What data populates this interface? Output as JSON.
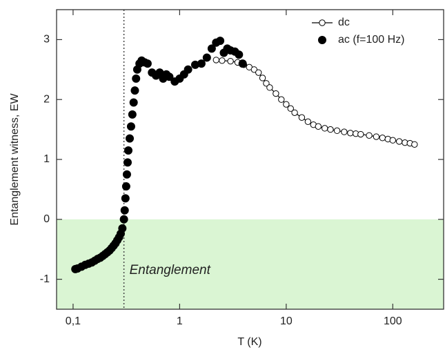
{
  "chart_data": {
    "type": "scatter",
    "x_label": "T (K)",
    "y_label": "Entanglement witness, EW",
    "xlim": [
      0.07,
      300
    ],
    "ylim": [
      -1.5,
      3.5
    ],
    "x_log": true,
    "xticks": [
      {
        "value": 0.1,
        "label": "0,1"
      },
      1,
      10,
      100
    ],
    "yticks": [
      -1,
      0,
      1,
      2,
      3
    ],
    "legend": "top-right",
    "vline": {
      "value": 0.3,
      "color": "#444444"
    },
    "shaded_region": {
      "ylim": [
        -1.5,
        0
      ],
      "color": "#daf5d3"
    },
    "annotation": {
      "text": "Entanglement",
      "color": "#2e6b1f"
    },
    "series": [
      {
        "name": "dc",
        "color": "#000000",
        "marker": "open",
        "connected": true,
        "x": [
          2.2,
          2.5,
          3,
          3.5,
          4,
          4.5,
          5,
          5.5,
          6,
          6.5,
          7,
          8,
          9,
          10,
          11,
          12,
          14,
          16,
          18,
          20,
          23,
          26,
          30,
          35,
          40,
          45,
          50,
          60,
          70,
          80,
          90,
          100,
          115,
          130,
          145,
          160
        ],
        "values": [
          2.66,
          2.65,
          2.64,
          2.62,
          2.58,
          2.54,
          2.5,
          2.45,
          2.36,
          2.27,
          2.2,
          2.1,
          2.0,
          1.92,
          1.85,
          1.78,
          1.7,
          1.63,
          1.58,
          1.55,
          1.52,
          1.5,
          1.48,
          1.46,
          1.44,
          1.43,
          1.42,
          1.4,
          1.38,
          1.36,
          1.34,
          1.32,
          1.3,
          1.28,
          1.27,
          1.25
        ]
      },
      {
        "name": "ac (f=100 Hz)",
        "color": "#000000",
        "marker": "filled",
        "connected": false,
        "x": [
          0.105,
          0.11,
          0.12,
          0.13,
          0.14,
          0.15,
          0.16,
          0.17,
          0.18,
          0.19,
          0.2,
          0.21,
          0.22,
          0.23,
          0.24,
          0.25,
          0.26,
          0.27,
          0.28,
          0.29,
          0.3,
          0.305,
          0.31,
          0.315,
          0.32,
          0.325,
          0.33,
          0.34,
          0.35,
          0.36,
          0.37,
          0.38,
          0.39,
          0.4,
          0.42,
          0.44,
          0.47,
          0.5,
          0.55,
          0.6,
          0.65,
          0.7,
          0.75,
          0.8,
          0.9,
          1.0,
          1.1,
          1.2,
          1.4,
          1.6,
          1.8,
          2.0,
          2.2,
          2.4,
          2.6,
          2.8,
          3.0,
          3.3,
          3.6,
          3.9
        ],
        "values": [
          -0.83,
          -0.82,
          -0.79,
          -0.76,
          -0.74,
          -0.72,
          -0.69,
          -0.66,
          -0.64,
          -0.61,
          -0.58,
          -0.55,
          -0.52,
          -0.48,
          -0.44,
          -0.4,
          -0.35,
          -0.3,
          -0.24,
          -0.15,
          0.0,
          0.15,
          0.35,
          0.55,
          0.75,
          0.95,
          1.15,
          1.35,
          1.55,
          1.75,
          1.95,
          2.15,
          2.35,
          2.5,
          2.6,
          2.65,
          2.62,
          2.6,
          2.45,
          2.4,
          2.45,
          2.35,
          2.42,
          2.38,
          2.3,
          2.35,
          2.42,
          2.5,
          2.58,
          2.6,
          2.7,
          2.85,
          2.95,
          2.98,
          2.78,
          2.85,
          2.82,
          2.8,
          2.75,
          2.6
        ]
      }
    ]
  }
}
